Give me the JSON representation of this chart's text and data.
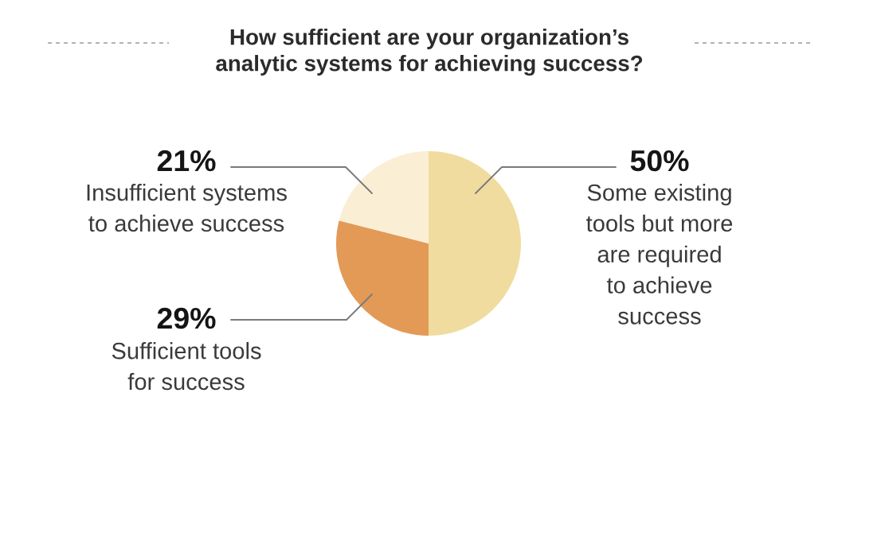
{
  "chart_data": {
    "type": "pie",
    "title": "How sufficient are your organization’s\nanalytic systems for achieving success?",
    "categories": [
      "Some existing\ntools but more\nare required\nto achieve\nsuccess",
      "Sufficient tools\nfor success",
      "Insufficient systems\nto achieve success"
    ],
    "values": [
      50,
      29,
      21
    ],
    "colors": [
      "#f0dc9e",
      "#e39a57",
      "#faefd5"
    ],
    "value_labels": [
      "50%",
      "29%",
      "21%"
    ]
  }
}
